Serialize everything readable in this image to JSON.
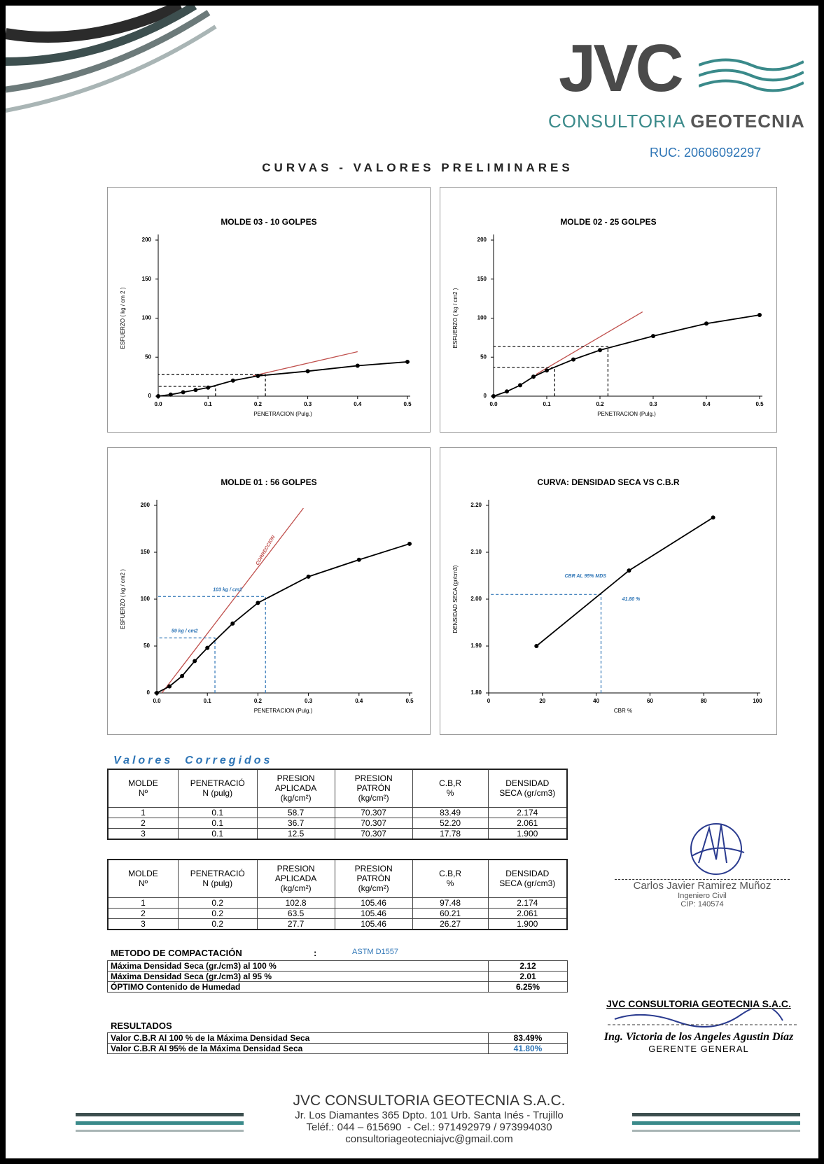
{
  "header": {
    "logo": "JVC",
    "company_line_1": "CONSULTORIA",
    "company_line_2": "GEOTECNIA",
    "ruc": "RUC: 20606092297"
  },
  "title": "CURVAS - VALORES PRELIMINARES",
  "chart_data": [
    {
      "type": "line",
      "title": "MOLDE 03 - 10 GOLPES",
      "x_label": "PENETRACION (Pulg.)",
      "y_label": "ESFUERZO ( kg / cm 2 )",
      "x": [
        0,
        0.025,
        0.05,
        0.075,
        0.1,
        0.15,
        0.2,
        0.3,
        0.4,
        0.5
      ],
      "values": [
        0,
        2,
        5,
        8,
        11,
        20,
        26,
        32,
        39,
        44
      ],
      "color": "#000000",
      "correction": {
        "x": [
          0.19,
          0.4
        ],
        "values": [
          26,
          57
        ],
        "color": "#c0504d"
      },
      "guides": [
        {
          "x": 0.115,
          "y": 12.5
        },
        {
          "x": 0.215,
          "y": 27.7
        }
      ],
      "guide_color": "#000000",
      "annotations": [],
      "xlim": [
        0,
        0.5
      ],
      "ylim": [
        0,
        200
      ],
      "xticks": [
        {
          "value": 0,
          "label": "0.0"
        },
        0.1,
        0.2,
        0.3,
        0.4,
        0.5
      ],
      "yticks": [
        0,
        50,
        100,
        150,
        200
      ]
    },
    {
      "type": "line",
      "title": "MOLDE 02 - 25 GOLPES",
      "x_label": "PENETRACION (Pulg.)",
      "y_label": "ESFUERZO ( kg / cm2 )",
      "x": [
        0,
        0.025,
        0.05,
        0.075,
        0.1,
        0.15,
        0.2,
        0.3,
        0.4,
        0.5
      ],
      "values": [
        0,
        6,
        14,
        25,
        33,
        47,
        59,
        77,
        93,
        104
      ],
      "color": "#000000",
      "correction": {
        "x": [
          0.08,
          0.28
        ],
        "values": [
          28,
          108
        ],
        "color": "#c0504d"
      },
      "guides": [
        {
          "x": 0.115,
          "y": 36.7
        },
        {
          "x": 0.215,
          "y": 63.5
        }
      ],
      "guide_color": "#000000",
      "annotations": [],
      "xlim": [
        0,
        0.5
      ],
      "ylim": [
        0,
        200
      ],
      "xticks": [
        {
          "value": 0,
          "label": "0.0"
        },
        0.1,
        0.2,
        0.3,
        0.4,
        0.5
      ],
      "yticks": [
        0,
        50,
        100,
        150,
        200
      ]
    },
    {
      "type": "line",
      "title": "MOLDE 01 : 56 GOLPES",
      "x_label": "PENETRACION (Pulg.)",
      "y_label": "ESFUERZO ( kg / cm2 )",
      "x": [
        0,
        0.025,
        0.05,
        0.075,
        0.1,
        0.15,
        0.2,
        0.3,
        0.4,
        0.5
      ],
      "values": [
        0,
        7,
        18,
        34,
        48,
        74,
        96,
        124,
        142,
        159
      ],
      "color": "#000000",
      "correction": {
        "x": [
          0.01,
          0.29
        ],
        "values": [
          0,
          197
        ],
        "color": "#c0504d"
      },
      "guides": [
        {
          "x": 0.115,
          "y": 58.7
        },
        {
          "x": 0.215,
          "y": 102.8
        }
      ],
      "guide_color": "#2e75b6",
      "annotations": [
        "CORRECCION",
        "103 kg / cm2",
        "59 kg / cm2"
      ],
      "xlim": [
        0,
        0.5
      ],
      "ylim": [
        0,
        200
      ],
      "xticks": [
        {
          "value": 0,
          "label": "0.0"
        },
        0.1,
        0.2,
        0.3,
        0.4,
        0.5
      ],
      "yticks": [
        0,
        50,
        100,
        150,
        200
      ]
    },
    {
      "type": "line",
      "title": "CURVA:  DENSIDAD SECA VS  C.B.R",
      "x_label": "CBR %",
      "y_label": "DENSIDAD SECA (gr/cm3)",
      "x": [
        17.78,
        52.2,
        83.49
      ],
      "values": [
        1.9,
        2.061,
        2.174
      ],
      "color": "#000000",
      "guides": [
        {
          "x": 41.8,
          "y": 2.01
        }
      ],
      "guide_color": "#2e75b6",
      "annotations": [
        "CBR AL 95% MDS",
        "41.80 %"
      ],
      "xlim": [
        0,
        100
      ],
      "ylim": [
        1.8,
        2.2
      ],
      "xticks": [
        0,
        20,
        40,
        60,
        80,
        100
      ],
      "yticks": [
        {
          "value": 1.8,
          "label": "1.80"
        },
        {
          "value": 1.9,
          "label": "1.90"
        },
        {
          "value": 2,
          "label": "2.00"
        },
        {
          "value": 2.1,
          "label": "2.10"
        },
        {
          "value": 2.2,
          "label": "2.20"
        }
      ]
    }
  ],
  "section_title": "Valores  Corregidos",
  "tables": [
    {
      "headers": [
        "MOLDE\nNº",
        "PENETRACIÓ\nN        (pulg)",
        "PRESION\nAPLICADA\n(kg/cm²)",
        "PRESION\nPATRÓN\n(kg/cm²)",
        "C.B,R\n%",
        "DENSIDAD\nSECA (gr/cm3)"
      ],
      "rows": [
        [
          "1",
          "0.1",
          "58.7",
          "70.307",
          "83.49",
          "2.174"
        ],
        [
          "2",
          "0.1",
          "36.7",
          "70.307",
          "52.20",
          "2.061"
        ],
        [
          "3",
          "0.1",
          "12.5",
          "70.307",
          "17.78",
          "1.900"
        ]
      ]
    },
    {
      "headers": [
        "MOLDE\nNº",
        "PENETRACIÓ\nN        (pulg)",
        "PRESION\nAPLICADA\n(kg/cm²)",
        "PRESION\nPATRÓN\n(kg/cm²)",
        "C.B,R\n%",
        "DENSIDAD\nSECA (gr/cm3)"
      ],
      "rows": [
        [
          "1",
          "0.2",
          "102.8",
          "105.46",
          "97.48",
          "2.174"
        ],
        [
          "2",
          "0.2",
          "63.5",
          "105.46",
          "60.21",
          "2.061"
        ],
        [
          "3",
          "0.2",
          "27.7",
          "105.46",
          "26.27",
          "1.900"
        ]
      ]
    }
  ],
  "method": {
    "label": "METODO DE COMPACTACIÓN",
    "separator": ":",
    "value": "ASTM D1557",
    "rows": [
      [
        "Máxima Densidad Seca (gr./cm3) al 100 %",
        "2.12"
      ],
      [
        "Máxima Densidad Seca (gr./cm3) al 95 %",
        "2.01"
      ],
      [
        "ÓPTIMO Contenido de Humedad",
        "6.25%"
      ]
    ]
  },
  "results": {
    "label": "RESULTADOS",
    "rows": [
      [
        "Valor C.B.R Al 100 % de la Máxima Densidad Seca",
        "83.49%"
      ],
      [
        "Valor C.B.R Al 95% de la Máxima Densidad Seca",
        "41.80%"
      ]
    ]
  },
  "signature_1": {
    "name": "Carlos Javier Ramirez Muñoz",
    "role": "Ingeniero Civil",
    "id": "CIP: 140574"
  },
  "signature_2": {
    "company": "JVC CONSULTORIA GEOTECNIA S.A.C.",
    "name": "Ing. Victoria de los Angeles Agustin Díaz",
    "role": "GERENTE GENERAL"
  },
  "footer": {
    "company": "JVC CONSULTORIA GEOTECNIA S.A.C.",
    "address": "Jr. Los Diamantes 365 Dpto. 101 Urb. Santa Inés - Trujillo",
    "phone": "Teléf.: 044 – 615690  - Cel.: 971492979 / 973994030",
    "email": "consultoriageotecniajvc@gmail.com"
  }
}
